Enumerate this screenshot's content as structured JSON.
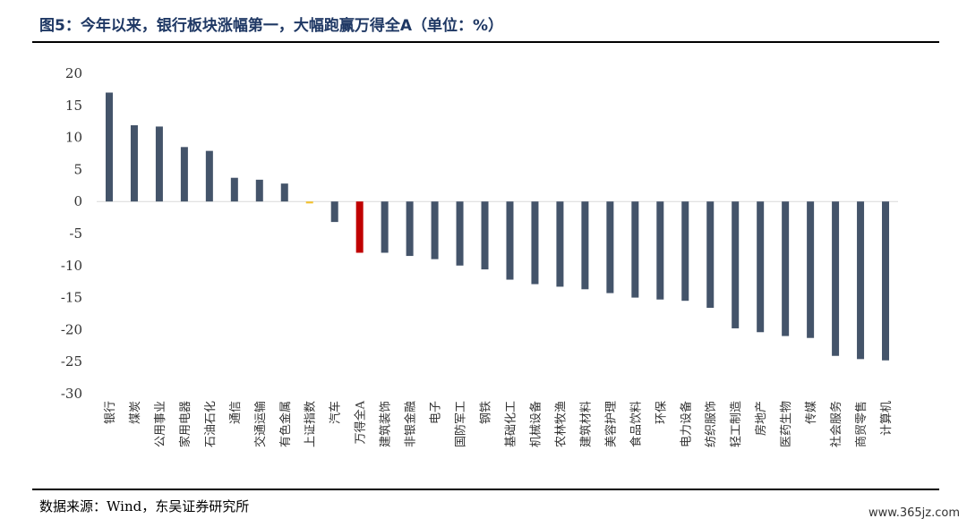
{
  "title": "图5：今年以来，银行板块涨幅第一，大幅跑赢万得全A（单位：%）",
  "source": "数据来源：Wind，东吴证券研究所",
  "watermark": "www.365jz.com",
  "chart_data": {
    "type": "bar",
    "categories": [
      "银行",
      "煤炭",
      "公用事业",
      "家用电器",
      "石油石化",
      "通信",
      "交通运输",
      "有色金属",
      "上证指数",
      "汽车",
      "万得全A",
      "建筑装饰",
      "非银金融",
      "电子",
      "国防军工",
      "钢铁",
      "基础化工",
      "机械设备",
      "农林牧渔",
      "建筑材料",
      "美容护理",
      "食品饮料",
      "环保",
      "电力设备",
      "纺织服饰",
      "轻工制造",
      "房地产",
      "医药生物",
      "传媒",
      "社会服务",
      "商贸零售",
      "计算机"
    ],
    "values": [
      17.0,
      11.9,
      11.7,
      8.5,
      7.9,
      3.7,
      3.4,
      2.8,
      -0.3,
      -3.2,
      -8.0,
      -8.0,
      -8.5,
      -9.0,
      -10.0,
      -10.6,
      -12.2,
      -12.9,
      -13.3,
      -13.7,
      -14.3,
      -15.0,
      -15.3,
      -15.5,
      -16.6,
      -19.8,
      -20.4,
      -21.0,
      -21.3,
      -24.1,
      -24.6,
      -24.8
    ],
    "colors": {
      "default": "#44546a",
      "index_sh": "#f2c12e",
      "index_wind": "#c00000"
    },
    "highlight": {
      "上证指数": "index_sh",
      "万得全A": "index_wind"
    },
    "ylim": [
      -30,
      20
    ],
    "yticks": [
      20,
      15,
      10,
      5,
      0,
      -5,
      -10,
      -15,
      -20,
      -25,
      -30
    ],
    "grid": false,
    "legend": "none"
  }
}
